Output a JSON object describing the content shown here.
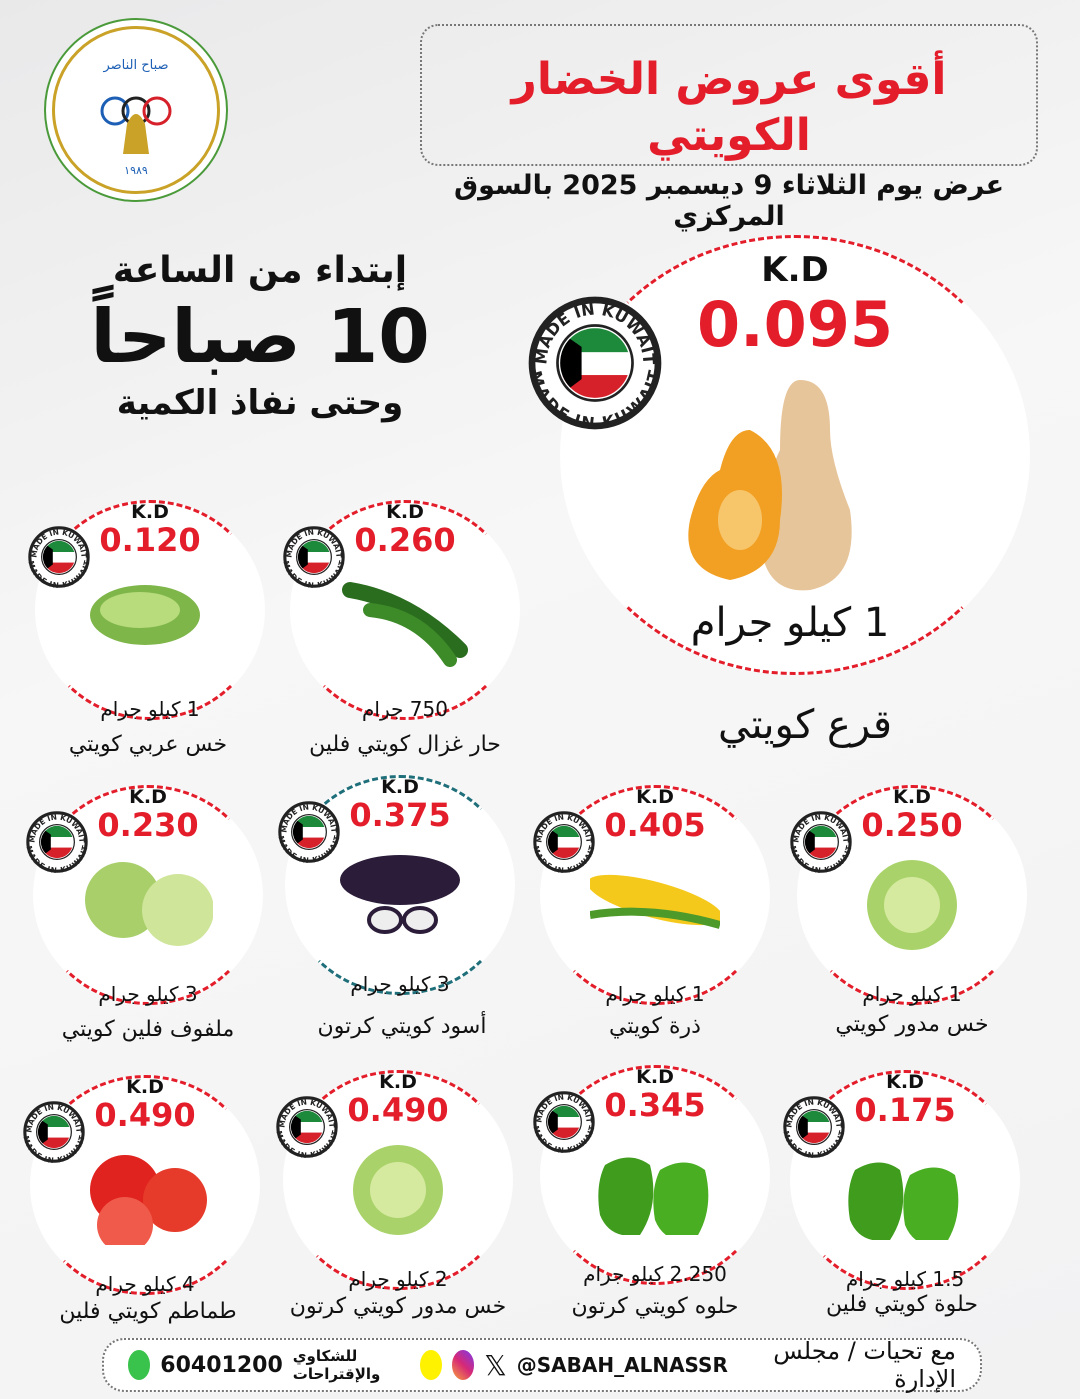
{
  "header": {
    "title": "أقوى عروض الخضار الكويتي",
    "subtitle": "عرض يوم الثلاثاء 9 ديسمبر 2025 بالسوق المركزي"
  },
  "logo": {
    "text": "جمعية ضاحية صباح الناصر التعاونية - الكويت - تأسست سنة ١٩٨٩"
  },
  "time": {
    "line1": "إبتداء من الساعة",
    "line2": "10 صباحاً",
    "line3": "وحتى نفاذ الكمية"
  },
  "badge_text": "MADE IN KUWAIT",
  "currency": "K.D",
  "featured": {
    "price": "0.095",
    "qty": "1 كيلو جرام",
    "name": "قرع كويتي"
  },
  "products": [
    {
      "price": "0.120",
      "qty": "1 كيلو جرام",
      "name": "خس عربي كويتي",
      "veg": "lettuce"
    },
    {
      "price": "0.260",
      "qty": "750 جرام",
      "name": "حار غزال كويتي فلين",
      "veg": "chili"
    },
    {
      "price": "0.230",
      "qty": "3 كيلو جرام",
      "name": "ملفوف فلين كويتي",
      "veg": "cabbage"
    },
    {
      "price": "0.375",
      "qty": "3 كيلو جرام",
      "name": "أسود كويتي كرتون",
      "veg": "eggplant"
    },
    {
      "price": "0.405",
      "qty": "1 كيلو جرام",
      "name": "ذرة كويتي",
      "veg": "corn"
    },
    {
      "price": "0.250",
      "qty": "1 كيلو جرام",
      "name": "خس مدور كويتي",
      "veg": "iceberg"
    },
    {
      "price": "0.490",
      "qty": "4 كيلو جرام",
      "name": "طماطم كويتي فلين",
      "veg": "tomato"
    },
    {
      "price": "0.490",
      "qty": "2 كيلو جرام",
      "name": "خس مدور كويتي كرتون",
      "veg": "iceberg"
    },
    {
      "price": "0.345",
      "qty": "2.250 كيلو جرام",
      "name": "حلوه كويتي كرتون",
      "veg": "pepper"
    },
    {
      "price": "0.175",
      "qty": "1.5 كيلو جرام",
      "name": "حلوة كويتي فلين",
      "veg": "pepper"
    }
  ],
  "footer": {
    "credit": "مع تحيات / مجلس الإدارة",
    "handle": "@SABAH_ALNASSR",
    "complaints": "للشكاوي والإقتراحات",
    "phone": "60401200",
    "icons": [
      "x-icon",
      "instagram-icon",
      "snapchat-icon",
      "whatsapp-icon"
    ]
  },
  "colors": {
    "accent": "#e41d2b",
    "teal": "#1f6f7a"
  }
}
